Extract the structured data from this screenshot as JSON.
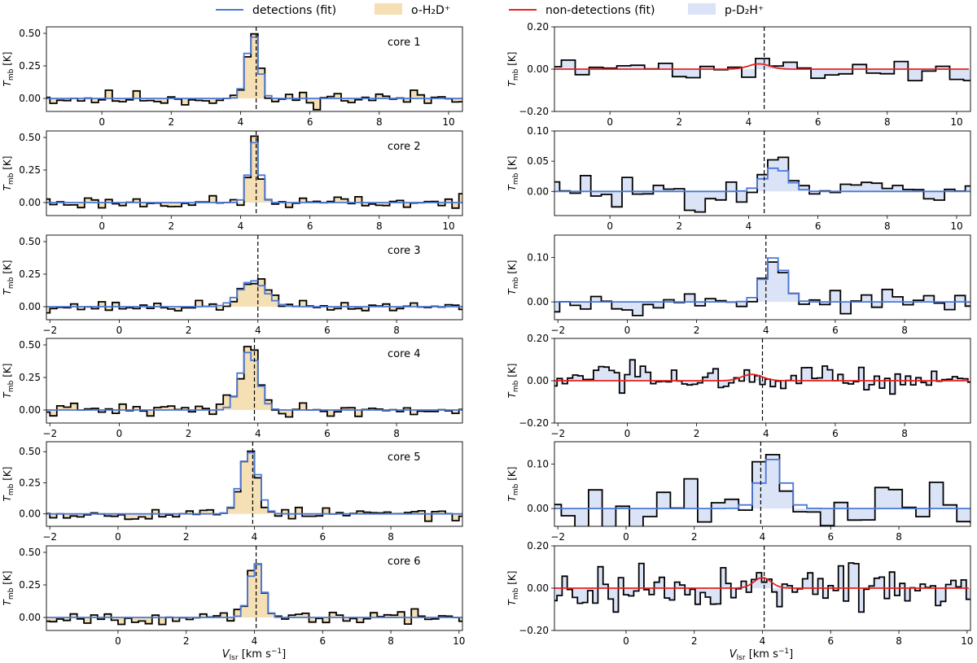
{
  "legend": {
    "detections_fit": "detections (fit)",
    "o_h2d": "o-H₂D⁺",
    "non_detections_fit": "non-detections (fit)",
    "p_d2h": "p-D₂H⁺"
  },
  "colors": {
    "detection_fit": "#4a78d6",
    "non_detection_fit": "#e8201f",
    "o_fill": "#f5dfb4",
    "p_fill": "#dbe3f7",
    "spectrum": "#000000"
  },
  "axis_labels": {
    "ylabel": "T_mb [K]",
    "xlabel": "V_lsr [km s⁻¹]"
  },
  "chart_data": [
    {
      "type": "line",
      "panel": "o-H2D+ core 1",
      "label": "core 1",
      "xlim": [
        -1.6,
        10.4
      ],
      "ylim": [
        -0.1,
        0.55
      ],
      "xticks": [
        0,
        2,
        4,
        6,
        8,
        10
      ],
      "xticklabels": [
        "0",
        "2",
        "4",
        "6",
        "8",
        "10"
      ],
      "yticks": [
        0,
        0.25,
        0.5
      ],
      "yticklabels": [
        "0.00",
        "0.25",
        "0.50"
      ],
      "vline": 4.45,
      "line_role": "detection",
      "step": 0.2,
      "noise": 0.045,
      "peaks": [
        {
          "center": 4.35,
          "amp": 0.5,
          "sigma": 0.17
        }
      ],
      "fit": {
        "center": 4.35,
        "amp": 0.49,
        "sigma": 0.18
      },
      "seed": 11
    },
    {
      "type": "line",
      "panel": "o-H2D+ core 2",
      "label": "core 2",
      "xlim": [
        -1.6,
        10.4
      ],
      "ylim": [
        -0.1,
        0.55
      ],
      "xticks": [
        0,
        2,
        4,
        6,
        8,
        10
      ],
      "xticklabels": [
        "0",
        "2",
        "4",
        "6",
        "8",
        "10"
      ],
      "yticks": [
        0,
        0.25,
        0.5
      ],
      "yticklabels": [
        "0.00",
        "0.25",
        "0.50"
      ],
      "vline": 4.45,
      "line_role": "detection",
      "step": 0.2,
      "noise": 0.035,
      "peaks": [
        {
          "center": 4.4,
          "amp": 0.47,
          "sigma": 0.15
        }
      ],
      "fit": {
        "center": 4.4,
        "amp": 0.46,
        "sigma": 0.16
      },
      "seed": 23
    },
    {
      "type": "line",
      "panel": "o-H2D+ core 3",
      "label": "core 3",
      "xlim": [
        -2.1,
        9.9
      ],
      "ylim": [
        -0.1,
        0.55
      ],
      "xticks": [
        -2,
        0,
        2,
        4,
        6,
        8
      ],
      "xticklabels": [
        "−2",
        "0",
        "2",
        "4",
        "6",
        "8"
      ],
      "yticks": [
        0,
        0.25,
        0.5
      ],
      "yticklabels": [
        "0.00",
        "0.25",
        "0.50"
      ],
      "vline": 4.0,
      "line_role": "detection",
      "step": 0.2,
      "noise": 0.03,
      "peaks": [
        {
          "center": 3.9,
          "amp": 0.22,
          "sigma": 0.35
        }
      ],
      "fit": {
        "center": 3.85,
        "amp": 0.2,
        "sigma": 0.38
      },
      "seed": 37
    },
    {
      "type": "line",
      "panel": "o-H2D+ core 4",
      "label": "core 4",
      "xlim": [
        -2.1,
        9.9
      ],
      "ylim": [
        -0.1,
        0.55
      ],
      "xticks": [
        -2,
        0,
        2,
        4,
        6,
        8
      ],
      "xticklabels": [
        "−2",
        "0",
        "2",
        "4",
        "6",
        "8"
      ],
      "yticks": [
        0,
        0.25,
        0.5
      ],
      "yticklabels": [
        "0.00",
        "0.25",
        "0.50"
      ],
      "vline": 3.9,
      "line_role": "detection",
      "step": 0.2,
      "noise": 0.035,
      "peaks": [
        {
          "center": 3.8,
          "amp": 0.5,
          "sigma": 0.22
        },
        {
          "center": 3.2,
          "amp": 0.12,
          "sigma": 0.25
        }
      ],
      "fit": {
        "center": 3.75,
        "amp": 0.45,
        "sigma": 0.26
      },
      "seed": 41
    },
    {
      "type": "line",
      "panel": "o-H2D+ core 5",
      "label": "core 5",
      "xlim": [
        -2.1,
        10.1
      ],
      "ylim": [
        -0.1,
        0.58
      ],
      "xticks": [
        -2,
        0,
        2,
        4,
        6,
        8
      ],
      "xticklabels": [
        "−2",
        "0",
        "2",
        "4",
        "6",
        "8"
      ],
      "yticks": [
        0,
        0.25,
        0.5
      ],
      "yticklabels": [
        "0.00",
        "0.25",
        "0.50"
      ],
      "vline": 3.95,
      "line_role": "detection",
      "step": 0.2,
      "noise": 0.035,
      "peaks": [
        {
          "center": 3.85,
          "amp": 0.53,
          "sigma": 0.24
        }
      ],
      "fit": {
        "center": 3.85,
        "amp": 0.5,
        "sigma": 0.26
      },
      "seed": 53
    },
    {
      "type": "line",
      "panel": "o-H2D+ core 6",
      "label": "core 6",
      "xlim": [
        -2.1,
        10.1
      ],
      "ylim": [
        -0.1,
        0.55
      ],
      "xticks": [
        0,
        2,
        4,
        6,
        8,
        10
      ],
      "xticklabels": [
        "0",
        "2",
        "4",
        "6",
        "8",
        "10"
      ],
      "yticks": [
        0,
        0.25,
        0.5
      ],
      "yticklabels": [
        "0.00",
        "0.25",
        "0.50"
      ],
      "vline": 4.05,
      "line_role": "detection",
      "step": 0.2,
      "noise": 0.035,
      "peaks": [
        {
          "center": 4.05,
          "amp": 0.45,
          "sigma": 0.18
        }
      ],
      "fit": {
        "center": 4.05,
        "amp": 0.42,
        "sigma": 0.2
      },
      "seed": 67
    },
    {
      "type": "line",
      "panel": "p-D2H+ core 1",
      "label": "",
      "xlim": [
        -1.6,
        10.4
      ],
      "ylim": [
        -0.2,
        0.2
      ],
      "xticks": [
        0,
        2,
        4,
        6,
        8,
        10
      ],
      "xticklabels": [
        "0",
        "2",
        "4",
        "6",
        "8",
        "10"
      ],
      "yticks": [
        -0.2,
        0,
        0.2
      ],
      "yticklabels": [
        "−0.20",
        "0.00",
        "0.20"
      ],
      "vline": 4.45,
      "line_role": "non-detection",
      "step": 0.4,
      "noise": 0.04,
      "peaks": [
        {
          "center": 4.3,
          "amp": 0.03,
          "sigma": 0.3
        }
      ],
      "fit": {
        "center": 4.3,
        "amp": 0.025,
        "sigma": 0.3
      },
      "seed": 71
    },
    {
      "type": "line",
      "panel": "p-D2H+ core 2",
      "label": "",
      "xlim": [
        -1.6,
        10.4
      ],
      "ylim": [
        -0.04,
        0.1
      ],
      "xticks": [
        0,
        2,
        4,
        6,
        8,
        10
      ],
      "xticklabels": [
        "0",
        "2",
        "4",
        "6",
        "8",
        "10"
      ],
      "yticks": [
        0,
        0.05,
        0.1
      ],
      "yticklabels": [
        "0.00",
        "0.05",
        "0.10"
      ],
      "vline": 4.45,
      "line_role": "detection",
      "step": 0.3,
      "noise": 0.018,
      "peaks": [
        {
          "center": 4.8,
          "amp": 0.045,
          "sigma": 0.35
        }
      ],
      "fit": {
        "center": 4.8,
        "amp": 0.04,
        "sigma": 0.35
      },
      "seed": 83
    },
    {
      "type": "line",
      "panel": "p-D2H+ core 3",
      "label": "",
      "xlim": [
        -2.1,
        9.9
      ],
      "ylim": [
        -0.04,
        0.15
      ],
      "xticks": [
        -2,
        0,
        2,
        4,
        6,
        8
      ],
      "xticklabels": [
        "−2",
        "0",
        "2",
        "4",
        "6",
        "8"
      ],
      "yticks": [
        0,
        0.1
      ],
      "yticklabels": [
        "0.00",
        "0.10"
      ],
      "vline": 4.0,
      "line_role": "detection",
      "step": 0.3,
      "noise": 0.015,
      "peaks": [
        {
          "center": 4.25,
          "amp": 0.1,
          "sigma": 0.3
        }
      ],
      "fit": {
        "center": 4.25,
        "amp": 0.1,
        "sigma": 0.3
      },
      "seed": 97
    },
    {
      "type": "line",
      "panel": "p-D2H+ core 4",
      "label": "",
      "xlim": [
        -2.1,
        9.9
      ],
      "ylim": [
        -0.2,
        0.2
      ],
      "xticks": [
        -2,
        0,
        2,
        4,
        6,
        8
      ],
      "xticklabels": [
        "−2",
        "0",
        "2",
        "4",
        "6",
        "8"
      ],
      "yticks": [
        -0.2,
        0,
        0.2
      ],
      "yticklabels": [
        "−0.20",
        "0.00",
        "0.20"
      ],
      "vline": 3.9,
      "line_role": "non-detection",
      "step": 0.15,
      "noise": 0.05,
      "peaks": [
        {
          "center": 3.6,
          "amp": 0.03,
          "sigma": 0.3
        }
      ],
      "fit": {
        "center": 3.6,
        "amp": 0.03,
        "sigma": 0.3
      },
      "seed": 103
    },
    {
      "type": "line",
      "panel": "p-D2H+ core 5",
      "label": "",
      "xlim": [
        -2.1,
        10.1
      ],
      "ylim": [
        -0.04,
        0.15
      ],
      "xticks": [
        -2,
        0,
        2,
        4,
        6,
        8
      ],
      "xticklabels": [
        "−2",
        "0",
        "2",
        "4",
        "6",
        "8"
      ],
      "yticks": [
        0,
        0.1
      ],
      "yticklabels": [
        "0.00",
        "0.10"
      ],
      "vline": 3.95,
      "line_role": "detection",
      "step": 0.4,
      "noise": 0.04,
      "peaks": [
        {
          "center": 4.3,
          "amp": 0.11,
          "sigma": 0.35
        }
      ],
      "fit": {
        "center": 4.3,
        "amp": 0.11,
        "sigma": 0.35
      },
      "seed": 113
    },
    {
      "type": "line",
      "panel": "p-D2H+ core 6",
      "label": "",
      "xlim": [
        -2.1,
        10.1
      ],
      "ylim": [
        -0.2,
        0.2
      ],
      "xticks": [
        0,
        2,
        4,
        6,
        8,
        10
      ],
      "xticklabels": [
        "0",
        "2",
        "4",
        "6",
        "8",
        "10"
      ],
      "yticks": [
        -0.2,
        0,
        0.2
      ],
      "yticklabels": [
        "−0.20",
        "0.00",
        "0.20"
      ],
      "vline": 4.05,
      "line_role": "non-detection",
      "step": 0.15,
      "noise": 0.08,
      "peaks": [
        {
          "center": 4.0,
          "amp": 0.05,
          "sigma": 0.25
        }
      ],
      "fit": {
        "center": 4.0,
        "amp": 0.05,
        "sigma": 0.25
      },
      "seed": 127
    }
  ]
}
